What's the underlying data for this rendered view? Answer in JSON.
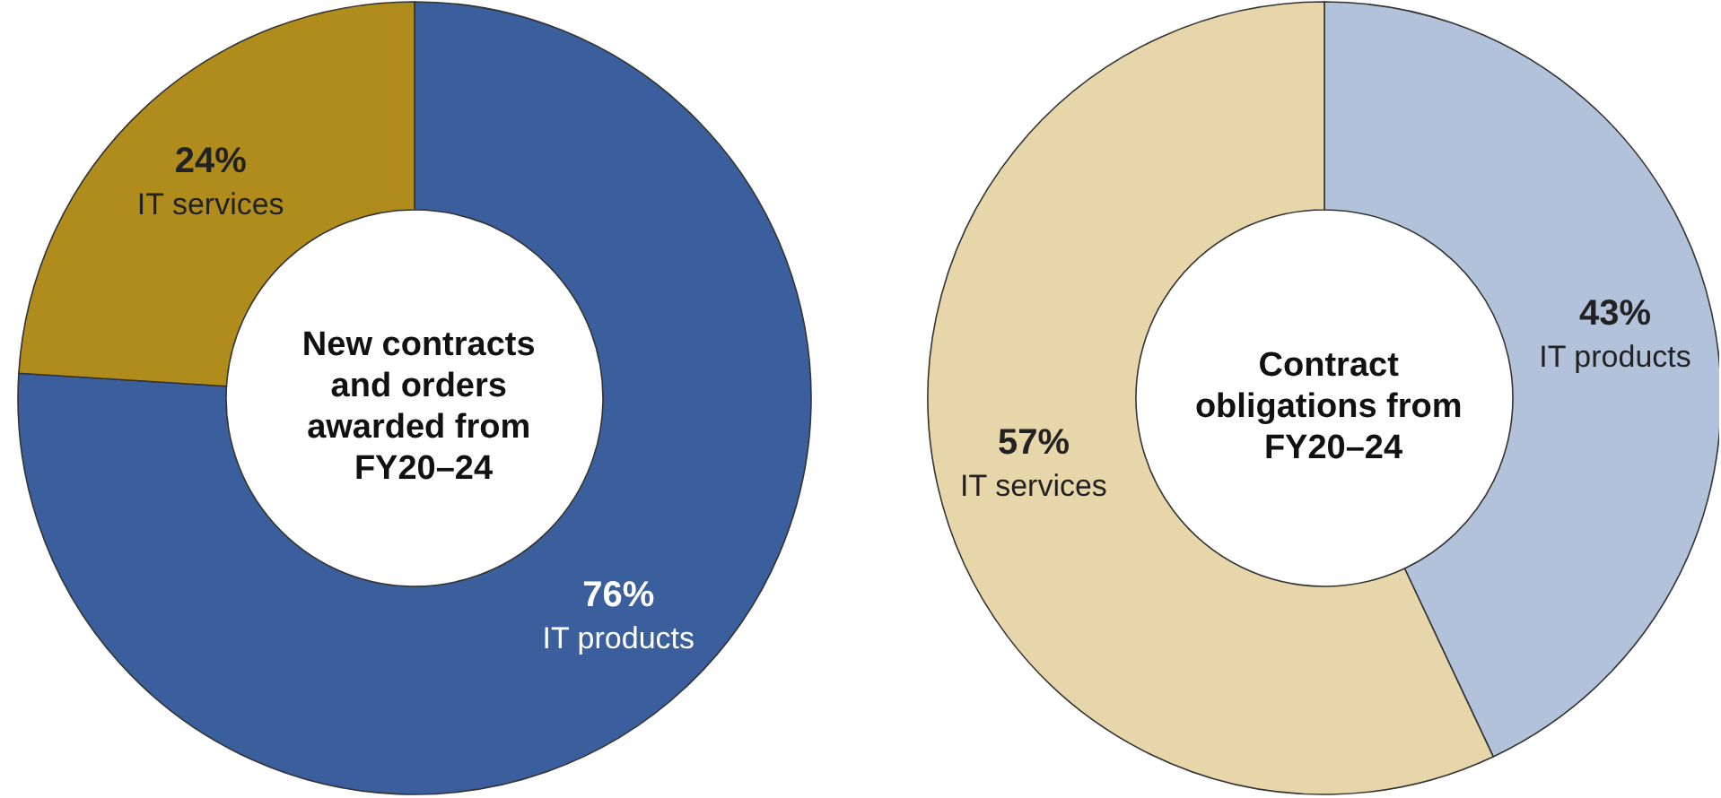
{
  "chart_data": [
    {
      "type": "donut",
      "title": "New contracts and orders awarded from FY20–24",
      "categories": [
        "IT products",
        "IT services"
      ],
      "values": [
        76,
        24
      ],
      "value_labels": [
        "76%",
        "24%"
      ],
      "colors": [
        "#3a5f9c",
        "#b08c1c"
      ],
      "legend": false
    },
    {
      "type": "donut",
      "title": "Contract obligations from FY20–24",
      "categories": [
        "IT products",
        "IT services"
      ],
      "values": [
        43,
        57
      ],
      "value_labels": [
        "43%",
        "57%"
      ],
      "colors": [
        "#b3c2db",
        "#e6d6a9"
      ],
      "legend": false
    }
  ]
}
